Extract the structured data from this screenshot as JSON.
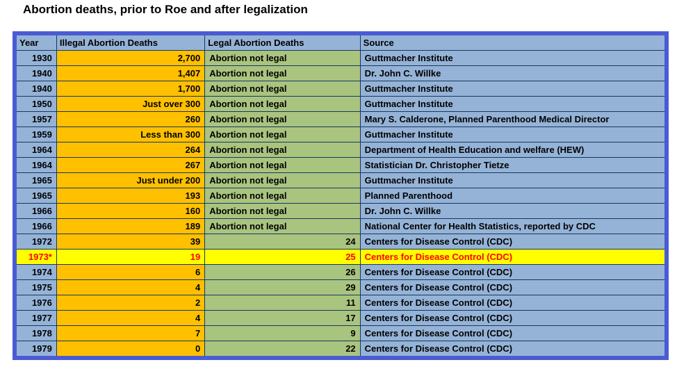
{
  "page": {
    "title": "Abortion deaths, prior to Roe and after legalization"
  },
  "chart_data": {
    "type": "table",
    "title": "Abortion deaths, prior to Roe and after legalization",
    "columns": [
      "Year",
      "Illegal Abortion Deaths",
      "Legal Abortion Deaths",
      "Source"
    ],
    "rows": [
      {
        "year": "1930",
        "illegal": "2,700",
        "legal": "Abortion not legal",
        "legal_numeric": false,
        "source": "Guttmacher Institute",
        "highlight": false
      },
      {
        "year": "1940",
        "illegal": "1,407",
        "legal": "Abortion not legal",
        "legal_numeric": false,
        "source": "Dr. John C. Willke",
        "highlight": false
      },
      {
        "year": "1940",
        "illegal": "1,700",
        "legal": "Abortion not legal",
        "legal_numeric": false,
        "source": "Guttmacher Institute",
        "highlight": false
      },
      {
        "year": "1950",
        "illegal": "Just over 300",
        "legal": "Abortion not legal",
        "legal_numeric": false,
        "source": "Guttmacher Institute",
        "highlight": false
      },
      {
        "year": "1957",
        "illegal": "260",
        "legal": "Abortion not legal",
        "legal_numeric": false,
        "source": "Mary S. Calderone, Planned Parenthood Medical Director",
        "highlight": false
      },
      {
        "year": "1959",
        "illegal": "Less than 300",
        "legal": "Abortion not legal",
        "legal_numeric": false,
        "source": "Guttmacher Institute",
        "highlight": false
      },
      {
        "year": "1964",
        "illegal": "264",
        "legal": "Abortion not legal",
        "legal_numeric": false,
        "source": "Department of Health Education and welfare (HEW)",
        "highlight": false
      },
      {
        "year": "1964",
        "illegal": "267",
        "legal": "Abortion not legal",
        "legal_numeric": false,
        "source": "Statistician Dr. Christopher Tietze",
        "highlight": false
      },
      {
        "year": "1965",
        "illegal": "Just under 200",
        "legal": "Abortion not legal",
        "legal_numeric": false,
        "source": "Guttmacher Institute",
        "highlight": false
      },
      {
        "year": "1965",
        "illegal": "193",
        "legal": "Abortion not legal",
        "legal_numeric": false,
        "source": "Planned Parenthood",
        "highlight": false
      },
      {
        "year": "1966",
        "illegal": "160",
        "legal": "Abortion not legal",
        "legal_numeric": false,
        "source": "Dr. John C. Willke",
        "highlight": false
      },
      {
        "year": "1966",
        "illegal": "189",
        "legal": "Abortion not legal",
        "legal_numeric": false,
        "source": "National Center for Health Statistics, reported by CDC",
        "highlight": false
      },
      {
        "year": "1972",
        "illegal": "39",
        "legal": "24",
        "legal_numeric": true,
        "source": "Centers for Disease Control (CDC)",
        "highlight": false
      },
      {
        "year": "1973*",
        "illegal": "19",
        "legal": "25",
        "legal_numeric": true,
        "source": "Centers for Disease Control (CDC)",
        "highlight": true
      },
      {
        "year": "1974",
        "illegal": "6",
        "legal": "26",
        "legal_numeric": true,
        "source": "Centers for Disease Control (CDC)",
        "highlight": false
      },
      {
        "year": "1975",
        "illegal": "4",
        "legal": "29",
        "legal_numeric": true,
        "source": "Centers for Disease Control (CDC)",
        "highlight": false
      },
      {
        "year": "1976",
        "illegal": "2",
        "legal": "11",
        "legal_numeric": true,
        "source": "Centers for Disease Control (CDC)",
        "highlight": false
      },
      {
        "year": "1977",
        "illegal": "4",
        "legal": "17",
        "legal_numeric": true,
        "source": "Centers for Disease Control (CDC)",
        "highlight": false
      },
      {
        "year": "1978",
        "illegal": "7",
        "legal": "9",
        "legal_numeric": true,
        "source": "Centers for Disease Control (CDC)",
        "highlight": false
      },
      {
        "year": "1979",
        "illegal": "0",
        "legal": "22",
        "legal_numeric": true,
        "source": "Centers for Disease Control (CDC)",
        "highlight": false
      }
    ]
  },
  "colors": {
    "year_source_fill": "#95b3d7",
    "illegal_fill": "#ffc000",
    "legal_fill": "#a9c47f",
    "highlight_fill": "#ffff00",
    "highlight_text": "#ff0000",
    "outer_border": "#4a5bd4",
    "grid_border": "#17375e",
    "text": "#000000"
  }
}
